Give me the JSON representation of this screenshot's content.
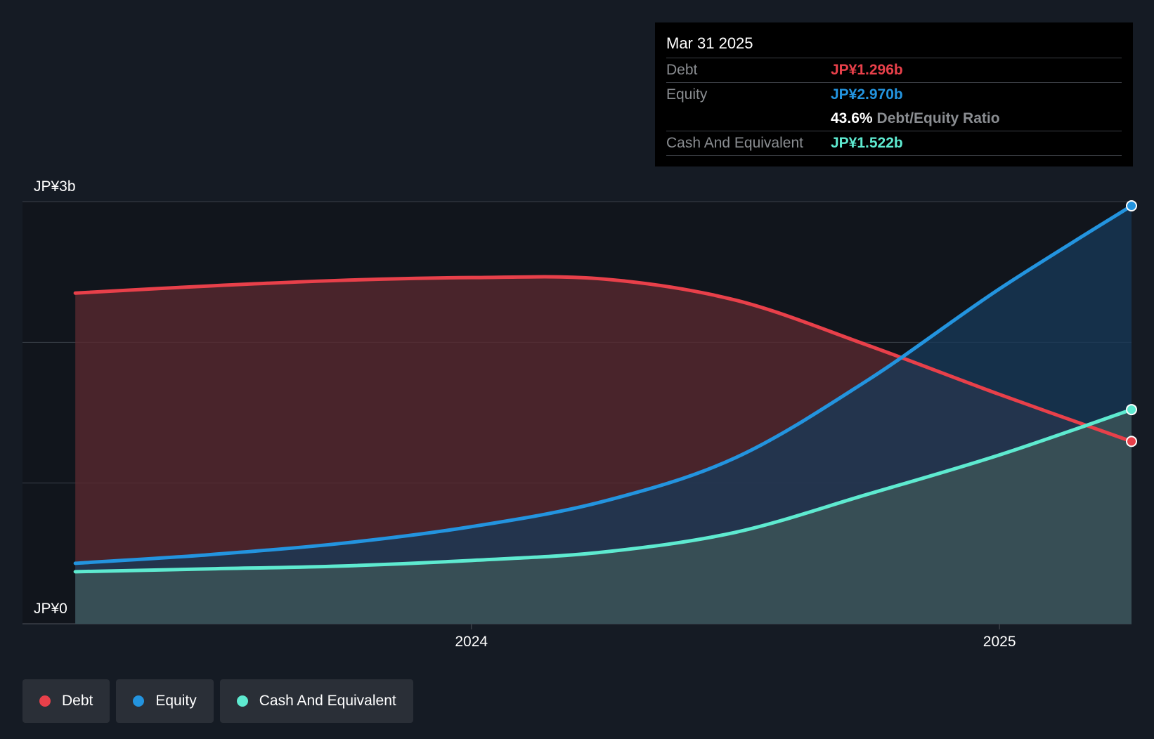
{
  "chart_data": {
    "type": "area",
    "title": "",
    "xlabel": "",
    "ylabel": "",
    "ylim": [
      0,
      3.0
    ],
    "y_unit": "JP¥ billions",
    "y_tick_labels": [
      {
        "value": 3.0,
        "label": "JP¥3b"
      },
      {
        "value": 0,
        "label": "JP¥0"
      }
    ],
    "y_gridlines": [
      0,
      1.0,
      2.0,
      3.0
    ],
    "x_range": [
      2023.15,
      2025.25
    ],
    "x_ticks": [
      {
        "value": 2024.0,
        "label": "2024"
      },
      {
        "value": 2025.0,
        "label": "2025"
      }
    ],
    "series": [
      {
        "name": "Debt",
        "color": "#e8404a",
        "fill": "#5c2a30",
        "x": [
          2023.25,
          2023.5,
          2023.75,
          2024.0,
          2024.25,
          2024.5,
          2024.75,
          2025.0,
          2025.25
        ],
        "values": [
          2.35,
          2.4,
          2.44,
          2.46,
          2.45,
          2.3,
          1.98,
          1.63,
          1.296
        ]
      },
      {
        "name": "Equity",
        "color": "#2394df",
        "fill": "#173a5a",
        "x": [
          2023.25,
          2023.5,
          2023.75,
          2024.0,
          2024.25,
          2024.5,
          2024.75,
          2025.0,
          2025.25
        ],
        "values": [
          0.43,
          0.49,
          0.57,
          0.69,
          0.87,
          1.18,
          1.73,
          2.38,
          2.97
        ]
      },
      {
        "name": "Cash And Equivalent",
        "color": "#5eead0",
        "fill": "#3c5558",
        "x": [
          2023.25,
          2023.5,
          2023.75,
          2024.0,
          2024.25,
          2024.5,
          2024.75,
          2025.0,
          2025.25
        ],
        "values": [
          0.37,
          0.39,
          0.41,
          0.45,
          0.51,
          0.65,
          0.92,
          1.2,
          1.522
        ]
      }
    ]
  },
  "tooltip": {
    "date": "Mar 31 2025",
    "debt_label": "Debt",
    "debt_value": "JP¥1.296b",
    "equity_label": "Equity",
    "equity_value": "JP¥2.970b",
    "ratio_value": "43.6%",
    "ratio_label": "Debt/Equity Ratio",
    "cash_label": "Cash And Equivalent",
    "cash_value": "JP¥1.522b"
  },
  "legend": {
    "items": [
      {
        "label": "Debt",
        "color": "#e8404a"
      },
      {
        "label": "Equity",
        "color": "#2394df"
      },
      {
        "label": "Cash And Equivalent",
        "color": "#5eead0"
      }
    ]
  },
  "colors": {
    "background": "#151b24",
    "plot_background": "#11151c",
    "grid": "#3a3f47",
    "debt": "#e8404a",
    "equity": "#2394df",
    "cash": "#5eead0"
  }
}
